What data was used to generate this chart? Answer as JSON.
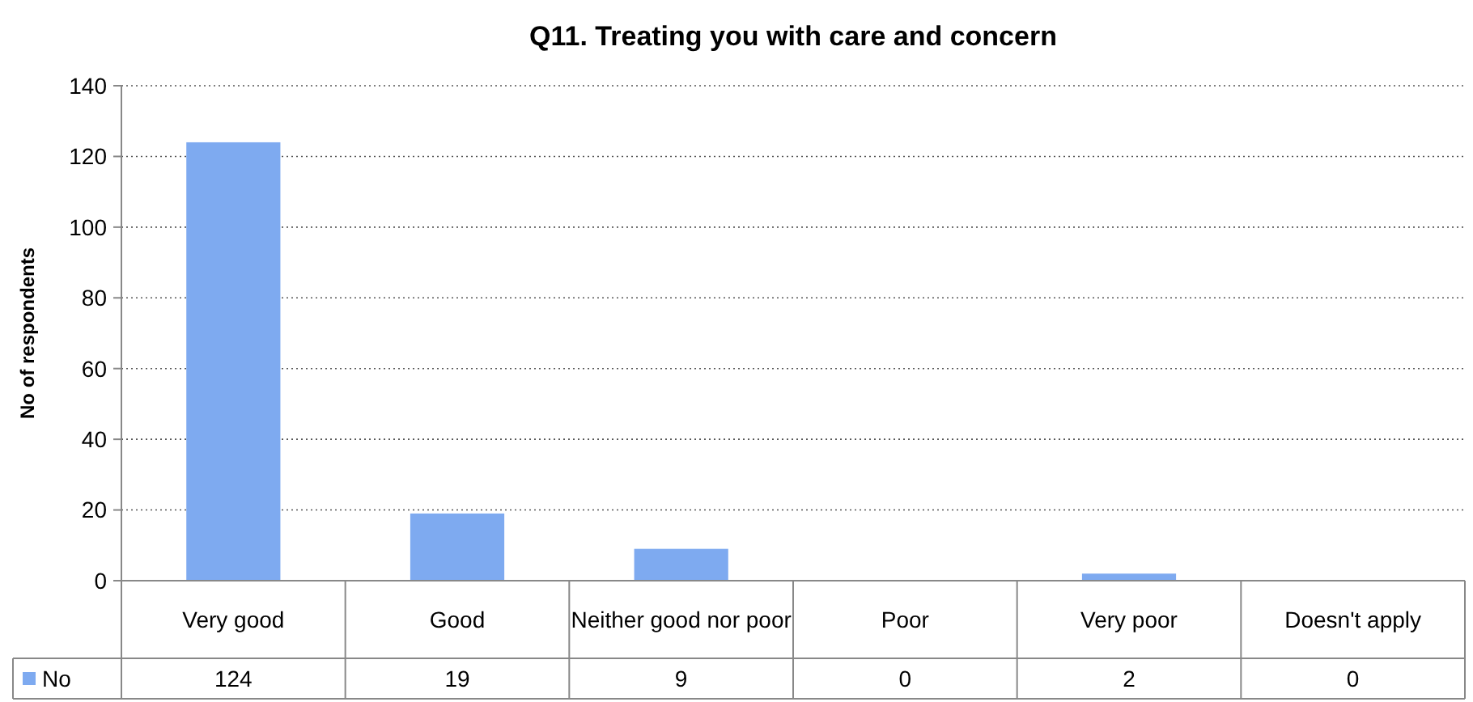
{
  "chart_data": {
    "type": "bar",
    "title": "Q11. Treating you with care and concern",
    "ylabel": "No of respondents",
    "categories": [
      "Very good",
      "Good",
      "Neither good nor poor",
      "Poor",
      "Very poor",
      "Doesn't apply"
    ],
    "series": [
      {
        "name": "No",
        "color": "#7eaaf0",
        "values": [
          124,
          19,
          9,
          0,
          2,
          0
        ]
      }
    ],
    "ylim": [
      0,
      140
    ],
    "yticks": [
      0,
      20,
      40,
      60,
      80,
      100,
      120,
      140
    ],
    "grid": "y",
    "legend": "bottom",
    "data_labels": true
  }
}
